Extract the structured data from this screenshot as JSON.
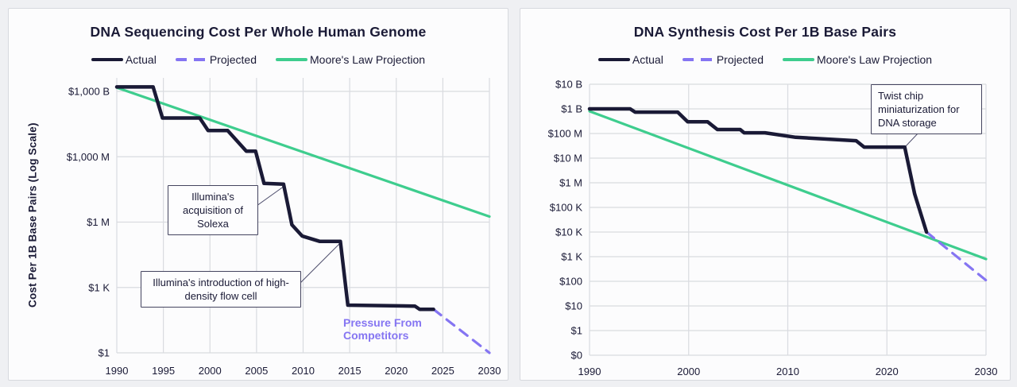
{
  "window": {
    "background": "#eff0f3"
  },
  "colors": {
    "actual": "#1a1a36",
    "projected": "#8575f2",
    "moore": "#3ecd8e",
    "grid": "#d9dbe0",
    "text": "#1a1a36",
    "card_bg": "#fcfcfd",
    "card_border": "#d7d9de"
  },
  "chart_data": [
    {
      "type": "line",
      "title": "DNA Sequencing Cost Per Whole Human Genome",
      "xlabel": "",
      "ylabel": "Cost Per 1B Base Pairs (Log Scale)",
      "y_scale": "log",
      "grid": true,
      "legend_position": "top",
      "x_range": [
        1990,
        2030
      ],
      "x_ticks": [
        "1990",
        "1995",
        "2000",
        "2005",
        "2010",
        "2015",
        "2020",
        "2025",
        "2030"
      ],
      "y_ticks": [
        {
          "label": "$1,000 B",
          "exp": 12
        },
        {
          "label": "$1,000 M",
          "exp": 9
        },
        {
          "label": "$1 M",
          "exp": 6
        },
        {
          "label": "$1 K",
          "exp": 3
        },
        {
          "label": "$1",
          "exp": 0
        }
      ],
      "series": [
        {
          "name": "Actual",
          "style": "solid",
          "color_key": "actual",
          "points": [
            [
              1990,
              1600000000000.0
            ],
            [
              1993.9,
              1600000000000.0
            ],
            [
              1994.9,
              60000000000.0
            ],
            [
              1998.9,
              60000000000.0
            ],
            [
              1999.8,
              16000000000.0
            ],
            [
              2001.9,
              16000000000.0
            ],
            [
              2003.9,
              1800000000.0
            ],
            [
              2004.9,
              1800000000.0
            ],
            [
              2005.8,
              60000000.0
            ],
            [
              2007.9,
              55000000.0
            ],
            [
              2008.8,
              750000.0
            ],
            [
              2009.9,
              230000.0
            ],
            [
              2011.8,
              130000.0
            ],
            [
              2014,
              130000.0
            ],
            [
              2014.8,
              155
            ],
            [
              2022,
              140
            ],
            [
              2022.5,
              100
            ],
            [
              2024,
              100
            ]
          ]
        },
        {
          "name": "Projected",
          "style": "dashed",
          "color_key": "projected",
          "points": [
            [
              2024,
              100
            ],
            [
              2030,
              1
            ]
          ]
        },
        {
          "name": "Moore's Law Projection",
          "style": "solid",
          "color_key": "moore",
          "points": [
            [
              1990,
              1500000000000.0
            ],
            [
              2030,
              1800000.0
            ]
          ]
        }
      ],
      "annotations": [
        {
          "text": "Illumina's acquisition of Solexa"
        },
        {
          "text": "Illumina's introduction of high-density flow cell"
        },
        {
          "text": "Pressure From Competitors"
        }
      ]
    },
    {
      "type": "line",
      "title": "DNA Synthesis Cost Per 1B Base Pairs",
      "xlabel": "",
      "ylabel": "",
      "y_scale": "log",
      "grid": true,
      "legend_position": "top",
      "x_range": [
        1990,
        2030
      ],
      "x_ticks": [
        "1990",
        "2000",
        "2010",
        "2020",
        "2030"
      ],
      "y_ticks": [
        {
          "label": "$10 B",
          "exp": 10
        },
        {
          "label": "$1 B",
          "exp": 9
        },
        {
          "label": "$100 M",
          "exp": 8
        },
        {
          "label": "$10 M",
          "exp": 7
        },
        {
          "label": "$1 M",
          "exp": 6
        },
        {
          "label": "$100 K",
          "exp": 5
        },
        {
          "label": "$10 K",
          "exp": 4
        },
        {
          "label": "$1 K",
          "exp": 3
        },
        {
          "label": "$100",
          "exp": 2
        },
        {
          "label": "$10",
          "exp": 1
        },
        {
          "label": "$1",
          "exp": 0
        },
        {
          "label": "$0",
          "exp": -1
        }
      ],
      "series": [
        {
          "name": "Actual",
          "style": "solid",
          "color_key": "actual",
          "points": [
            [
              1990,
              1000000000.0
            ],
            [
              1994.1,
              1000000000.0
            ],
            [
              1994.6,
              740000000.0
            ],
            [
              1998.9,
              740000000.0
            ],
            [
              1999.9,
              300000000.0
            ],
            [
              2001.9,
              300000000.0
            ],
            [
              2002.9,
              145000000.0
            ],
            [
              2005.2,
              145000000.0
            ],
            [
              2005.6,
              107000000.0
            ],
            [
              2007.7,
              107000000.0
            ],
            [
              2010.8,
              70000000.0
            ],
            [
              2016.9,
              51000000.0
            ],
            [
              2017.7,
              28000000.0
            ],
            [
              2021.8,
              28000000.0
            ],
            [
              2022.8,
              350000.0
            ],
            [
              2024,
              10000.0
            ]
          ]
        },
        {
          "name": "Projected",
          "style": "dashed",
          "color_key": "projected",
          "points": [
            [
              2024,
              10000.0
            ],
            [
              2030,
              110
            ]
          ]
        },
        {
          "name": "Moore's Law Projection",
          "style": "solid",
          "color_key": "moore",
          "points": [
            [
              1990,
              800000000.0
            ],
            [
              2030,
              800
            ]
          ]
        }
      ],
      "annotations": [
        {
          "text": "Twist chip miniaturization for DNA storage"
        }
      ]
    }
  ]
}
